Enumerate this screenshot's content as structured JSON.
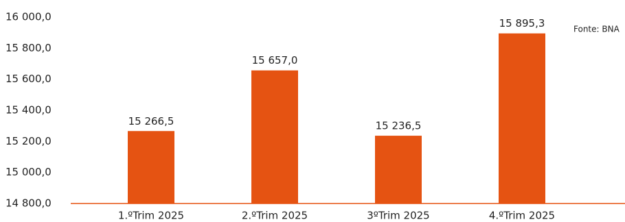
{
  "chart_data": {
    "type": "bar",
    "categories": [
      "1.ºTrim 2025",
      "2.ºTrim 2025",
      "3ºTrim 2025",
      "4.ºTrim 2025"
    ],
    "values": [
      15266.5,
      15657.0,
      15236.5,
      15895.3
    ],
    "value_labels": [
      "15 266,5",
      "15 657,0",
      "15 236,5",
      "15 895,3"
    ],
    "color": "#e55312",
    "ylim": [
      14800,
      16000
    ],
    "yticks": [
      {
        "value": 14800,
        "label": "14 800,0"
      },
      {
        "value": 15000,
        "label": "15 000,0"
      },
      {
        "value": 15200,
        "label": "15 200,0"
      },
      {
        "value": 15400,
        "label": "15 400,0"
      },
      {
        "value": 15600,
        "label": "15 600,0"
      },
      {
        "value": 15800,
        "label": "15 800,0"
      },
      {
        "value": 16000,
        "label": "16 000,0"
      }
    ],
    "grid": false,
    "annotation": "Fonte: BNA"
  }
}
